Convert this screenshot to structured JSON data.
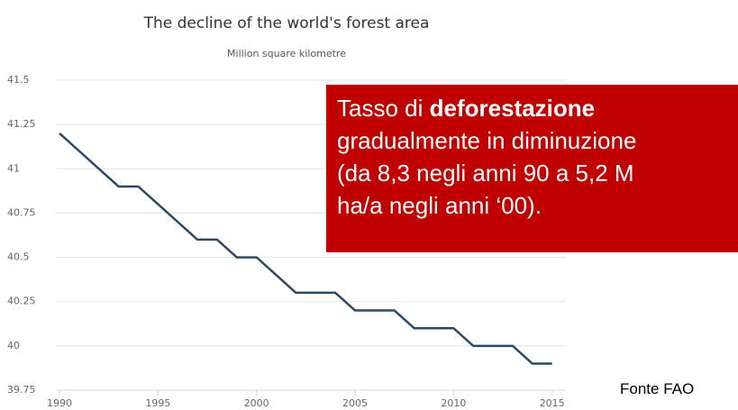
{
  "chart_data": {
    "type": "line",
    "title": "The decline of the world's forest area",
    "subtitle": "Million square kilometre",
    "x": [
      1990,
      1991,
      1992,
      1993,
      1994,
      1995,
      1996,
      1997,
      1998,
      1999,
      2000,
      2001,
      2002,
      2003,
      2004,
      2005,
      2006,
      2007,
      2008,
      2009,
      2010,
      2011,
      2012,
      2013,
      2014,
      2015
    ],
    "series": [
      {
        "name": "Forest area",
        "color": "#2c4a63",
        "values": [
          41.2,
          41.1,
          41.0,
          40.9,
          40.9,
          40.8,
          40.7,
          40.6,
          40.6,
          40.5,
          40.5,
          40.4,
          40.3,
          40.3,
          40.3,
          40.2,
          40.2,
          40.2,
          40.1,
          40.1,
          40.1,
          40.0,
          40.0,
          40.0,
          39.9,
          39.9
        ]
      }
    ],
    "xlim": [
      1990,
      2015.7
    ],
    "xticks": [
      1990,
      1995,
      2000,
      2005,
      2010,
      2015
    ],
    "ylim": [
      39.75,
      41.5
    ],
    "yticks": [
      39.75,
      40,
      40.25,
      40.5,
      40.75,
      41,
      41.25,
      41.5
    ],
    "grid": true,
    "annotation": {
      "color": "#c00000",
      "lines": [
        [
          {
            "text": "Tasso di "
          },
          {
            "text": "deforestazione",
            "bold": true
          }
        ],
        [
          {
            "text": "gradualmente in diminuzione"
          }
        ],
        [
          {
            "text": "(da 8,3 negli anni 90 a 5,2 M"
          }
        ],
        [
          {
            "text": "ha/a negli anni ‘00)."
          }
        ]
      ]
    },
    "source": "Fonte FAO"
  }
}
